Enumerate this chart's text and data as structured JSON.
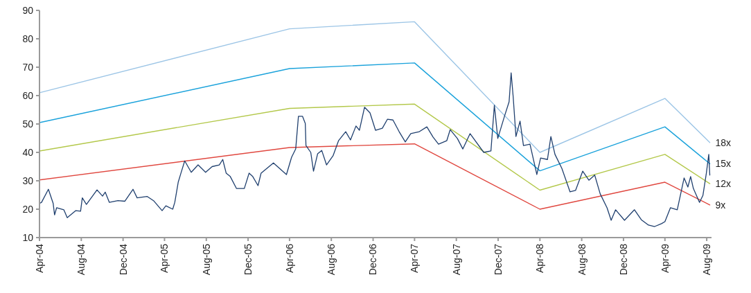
{
  "chart_data": {
    "type": "line",
    "xlim": [
      "2004-04-01",
      "2009-08-15"
    ],
    "ylim": [
      10,
      90
    ],
    "yticks": [
      10,
      20,
      30,
      40,
      50,
      60,
      70,
      80,
      90
    ],
    "xticks": [
      {
        "value": "2004-04-01",
        "label": "Apr-04"
      },
      {
        "value": "2004-08-01",
        "label": "Aug-04"
      },
      {
        "value": "2004-12-01",
        "label": "Dec-04"
      },
      {
        "value": "2005-04-01",
        "label": "Apr-05"
      },
      {
        "value": "2005-08-01",
        "label": "Aug-05"
      },
      {
        "value": "2005-12-01",
        "label": "Dec-05"
      },
      {
        "value": "2006-04-01",
        "label": "Apr-06"
      },
      {
        "value": "2006-08-01",
        "label": "Aug-06"
      },
      {
        "value": "2006-12-01",
        "label": "Dec-06"
      },
      {
        "value": "2007-04-01",
        "label": "Apr-07"
      },
      {
        "value": "2007-08-01",
        "label": "Aug-07"
      },
      {
        "value": "2007-12-01",
        "label": "Dec-07"
      },
      {
        "value": "2008-04-01",
        "label": "Apr-08"
      },
      {
        "value": "2008-08-01",
        "label": "Aug-08"
      },
      {
        "value": "2008-12-01",
        "label": "Dec-08"
      },
      {
        "value": "2009-04-01",
        "label": "Apr-09"
      },
      {
        "value": "2009-08-01",
        "label": "Aug-09"
      }
    ],
    "series": [
      {
        "name": "18x",
        "color": "#9cc5e6",
        "x": [
          "2004-04-01",
          "2006-04-01",
          "2007-04-01",
          "2008-04-01",
          "2009-04-01",
          "2009-08-10"
        ],
        "values": [
          61,
          83.5,
          86,
          40,
          59,
          43.5
        ]
      },
      {
        "name": "15x",
        "color": "#1aa2db",
        "x": [
          "2004-04-01",
          "2006-04-01",
          "2007-04-01",
          "2008-04-01",
          "2009-04-01",
          "2009-08-10"
        ],
        "values": [
          50.5,
          69.5,
          71.5,
          33.5,
          49,
          36
        ]
      },
      {
        "name": "12x",
        "color": "#b3c84a",
        "x": [
          "2004-04-01",
          "2006-04-01",
          "2007-04-01",
          "2008-04-01",
          "2009-04-01",
          "2009-08-10"
        ],
        "values": [
          40.5,
          55.5,
          57,
          26.7,
          39.3,
          29
        ]
      },
      {
        "name": "9x",
        "color": "#e0473f",
        "x": [
          "2004-04-01",
          "2006-04-01",
          "2007-04-01",
          "2008-04-01",
          "2009-04-01",
          "2009-08-10"
        ],
        "values": [
          30.3,
          41.7,
          43,
          20,
          29.5,
          21.5
        ]
      },
      {
        "color": "#1f3f6e",
        "x": [
          "2004-04-01",
          "2004-04-07",
          "2004-04-27",
          "2004-05-11",
          "2004-05-15",
          "2004-05-21",
          "2004-06-11",
          "2004-06-21",
          "2004-07-16",
          "2004-07-30",
          "2004-08-04",
          "2004-08-16",
          "2004-09-16",
          "2004-10-02",
          "2004-10-10",
          "2004-10-22",
          "2004-11-16",
          "2004-12-06",
          "2004-12-30",
          "2005-01-11",
          "2005-02-09",
          "2005-02-28",
          "2005-03-25",
          "2005-04-05",
          "2005-04-25",
          "2005-05-01",
          "2005-05-11",
          "2005-05-19",
          "2005-05-30",
          "2005-06-18",
          "2005-07-08",
          "2005-07-30",
          "2005-08-18",
          "2005-09-08",
          "2005-09-18",
          "2005-09-28",
          "2005-10-10",
          "2005-10-28",
          "2005-11-20",
          "2005-12-04",
          "2005-12-14",
          "2005-12-30",
          "2006-01-08",
          "2006-02-13",
          "2006-03-23",
          "2006-04-07",
          "2006-04-19",
          "2006-04-27",
          "2006-05-09",
          "2006-05-17",
          "2006-05-19",
          "2006-06-02",
          "2006-06-10",
          "2006-06-22",
          "2006-07-04",
          "2006-07-18",
          "2006-08-06",
          "2006-08-22",
          "2006-09-12",
          "2006-09-26",
          "2006-10-12",
          "2006-10-22",
          "2006-11-06",
          "2006-11-22",
          "2006-12-08",
          "2006-12-28",
          "2007-01-12",
          "2007-01-28",
          "2007-02-15",
          "2007-03-05",
          "2007-03-21",
          "2007-04-15",
          "2007-05-07",
          "2007-05-25",
          "2007-06-10",
          "2007-07-04",
          "2007-07-14",
          "2007-08-04",
          "2007-08-20",
          "2007-09-10",
          "2007-10-20",
          "2007-11-10",
          "2007-11-20",
          "2007-11-30",
          "2007-12-20",
          "2008-01-02",
          "2008-01-08",
          "2008-01-14",
          "2008-01-22",
          "2008-02-03",
          "2008-02-13",
          "2008-03-03",
          "2008-03-23",
          "2008-04-03",
          "2008-04-23",
          "2008-05-03",
          "2008-05-15",
          "2008-06-04",
          "2008-06-28",
          "2008-07-14",
          "2008-08-04",
          "2008-08-22",
          "2008-09-08",
          "2008-09-24",
          "2008-10-14",
          "2008-10-26",
          "2008-11-08",
          "2008-12-04",
          "2009-01-02",
          "2009-01-22",
          "2009-02-12",
          "2009-03-02",
          "2009-03-22",
          "2009-04-01",
          "2009-04-17",
          "2009-05-07",
          "2009-05-17",
          "2009-05-27",
          "2009-06-07",
          "2009-06-15",
          "2009-06-23",
          "2009-07-11",
          "2009-07-21",
          "2009-07-31",
          "2009-08-07",
          "2009-08-10"
        ],
        "values": [
          22,
          22.4,
          27,
          22,
          18,
          20.5,
          19.8,
          17,
          19.5,
          19.3,
          24,
          21.7,
          26.8,
          24.6,
          26,
          22.4,
          23,
          22.8,
          27,
          24,
          24.5,
          23,
          19.5,
          21.2,
          20,
          22.4,
          29.5,
          32.7,
          37,
          33,
          35.6,
          33,
          35,
          35.6,
          37.5,
          32.7,
          31.5,
          27.3,
          27.3,
          32.7,
          31.6,
          28.3,
          32.7,
          36.3,
          32.2,
          38.3,
          41.2,
          52.7,
          52.7,
          50.2,
          42.4,
          40,
          33.4,
          39.5,
          40.7,
          35.6,
          38.8,
          44.1,
          47.3,
          44.4,
          49.3,
          47.8,
          55.9,
          53.9,
          47.8,
          48.5,
          51.7,
          51.4,
          47.3,
          43.7,
          46.6,
          47.3,
          49,
          45.4,
          42.9,
          44.1,
          48,
          44.9,
          41.2,
          46.6,
          40,
          40.5,
          56.6,
          44.9,
          52.9,
          57.8,
          68,
          59.5,
          45.6,
          51,
          42.4,
          42.9,
          32.2,
          38,
          37.5,
          45.6,
          39.3,
          34.4,
          26.1,
          26.6,
          33.4,
          30.2,
          32,
          25.4,
          20.5,
          16.1,
          19.8,
          16.1,
          19.8,
          16.3,
          14.4,
          13.9,
          14.9,
          15.6,
          20.5,
          19.8,
          25.4,
          31,
          27.8,
          31.5,
          27.3,
          22.4,
          24.9,
          32.7,
          39.3,
          32
        ]
      }
    ]
  }
}
